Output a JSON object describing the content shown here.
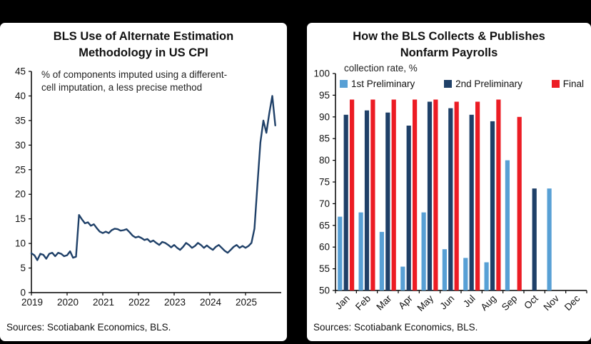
{
  "chart_data": [
    {
      "type": "line",
      "title": "BLS Use of Alternate Estimation Methodology in US CPI",
      "title_lines": [
        "BLS Use of Alternate Estimation",
        "Methodology in US CPI"
      ],
      "annotation_lines": [
        "% of components imputed using a different-",
        "cell imputation, a less precise method"
      ],
      "source": "Sources: Scotiabank Economics, BLS.",
      "ylim": [
        0,
        45
      ],
      "ytick_step": 5,
      "x_domain": [
        2019,
        2026
      ],
      "x_axis_years": [
        "2019",
        "2020",
        "2021",
        "2022",
        "2023",
        "2024",
        "2025"
      ],
      "x_monthly_start": 2019,
      "line_color": "#1f4068",
      "values": [
        8.0,
        7.6,
        6.6,
        7.9,
        7.7,
        6.9,
        7.9,
        8.1,
        7.4,
        8.1,
        7.9,
        7.4,
        7.6,
        8.4,
        7.1,
        7.3,
        15.8,
        14.9,
        14.1,
        14.3,
        13.6,
        13.9,
        13.1,
        12.4,
        12.1,
        12.4,
        12.1,
        12.7,
        13.0,
        12.9,
        12.6,
        12.7,
        12.9,
        12.3,
        11.6,
        11.2,
        11.4,
        11.1,
        10.7,
        10.9,
        10.3,
        10.6,
        10.1,
        9.7,
        10.3,
        10.1,
        9.7,
        9.2,
        9.7,
        9.1,
        8.7,
        9.3,
        10.1,
        9.7,
        9.1,
        9.5,
        10.1,
        9.7,
        9.1,
        9.6,
        9.1,
        8.7,
        9.3,
        9.7,
        9.1,
        8.5,
        8.1,
        8.7,
        9.3,
        9.7,
        9.1,
        9.5,
        9.1,
        9.5,
        10.1,
        13.0,
        22.0,
        30.5,
        35.0,
        32.5,
        36.5,
        40.0,
        34.0
      ]
    },
    {
      "type": "bar",
      "title": "How the BLS Collects & Publishes Nonfarm Payrolls",
      "title_lines": [
        "How the BLS Collects & Publishes",
        "Nonfarm Payrolls"
      ],
      "subtitle": "collection rate, %",
      "source": "Sources: Scotiabank Economics, BLS.",
      "ylim": [
        50,
        100
      ],
      "ytick_step": 5,
      "categories": [
        "Jan",
        "Feb",
        "Mar",
        "Apr",
        "May",
        "Jun",
        "Jul",
        "Aug",
        "Sep",
        "Oct",
        "Nov",
        "Dec"
      ],
      "series": [
        {
          "name": "1st Preliminary",
          "color": "#58a0d5",
          "values": [
            67,
            68,
            63.5,
            55.5,
            68,
            59.5,
            57.5,
            56.5,
            80,
            null,
            73.5,
            null
          ]
        },
        {
          "name": "2nd Preliminary",
          "color": "#1f4068",
          "values": [
            90.5,
            91.5,
            91,
            88,
            93.5,
            92,
            90.5,
            89,
            null,
            73.5,
            null,
            null
          ]
        },
        {
          "name": "Final",
          "color": "#ec1c24",
          "values": [
            94,
            94,
            94,
            94,
            94,
            93.5,
            93.5,
            94,
            90,
            null,
            null,
            null
          ]
        }
      ]
    }
  ]
}
